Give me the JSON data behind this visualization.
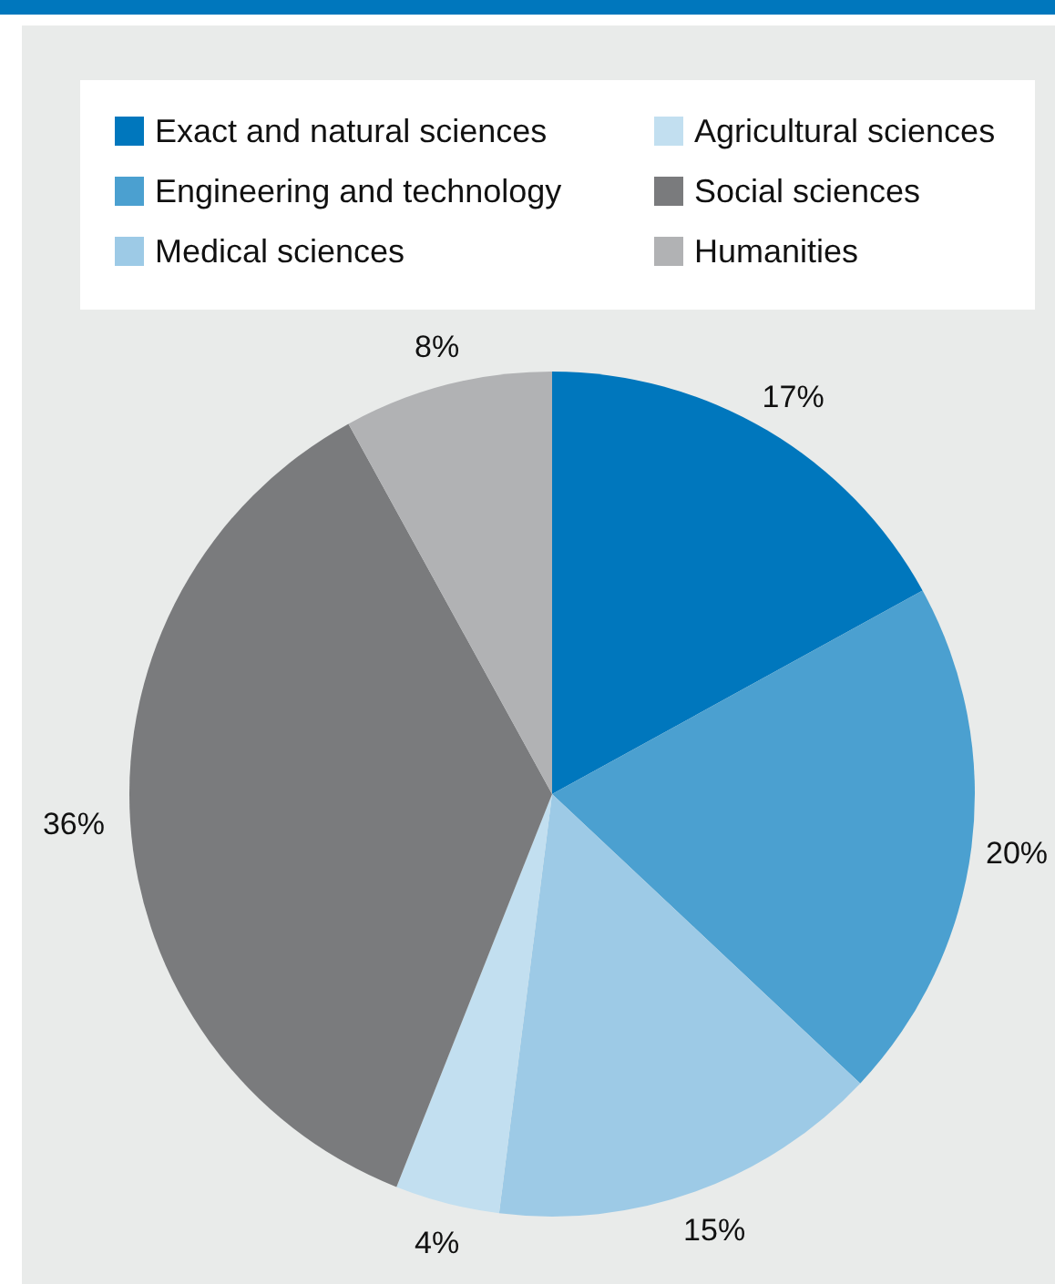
{
  "chart_data": {
    "type": "pie",
    "categories": [
      "Exact and natural sciences",
      "Engineering and technology",
      "Medical sciences",
      "Agricultural sciences",
      "Social sciences",
      "Humanities"
    ],
    "values": [
      17,
      20,
      15,
      4,
      36,
      8
    ],
    "colors": [
      "#0077bd",
      "#4ba0d0",
      "#9dcae6",
      "#c2dff0",
      "#7a7b7d",
      "#b1b2b4"
    ],
    "value_labels": [
      "17%",
      "20%",
      "15%",
      "4%",
      "36%",
      "8%"
    ],
    "legend": "top"
  }
}
